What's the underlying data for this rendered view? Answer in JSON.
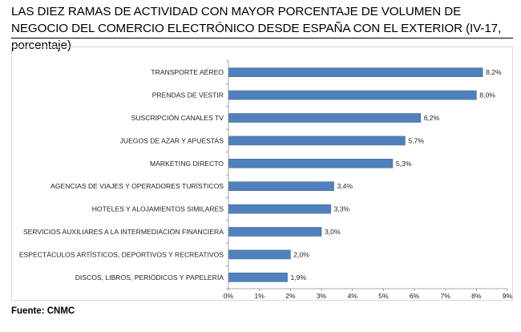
{
  "title": "LAS DIEZ RAMAS DE ACTIVIDAD CON MAYOR PORCENTAJE DE VOLUMEN DE NEGOCIO DEL COMERCIO ELECTRÓNICO DESDE ESPAÑA CON EL EXTERIOR (IV-17, porcentaje)",
  "source": "Fuente: CNMC",
  "colors": {
    "bar": "#4f81bd",
    "bar_edge": "#3b6a9e",
    "axis": "#8c8c8c"
  },
  "chart_data": {
    "type": "bar",
    "orientation": "horizontal",
    "title": "",
    "xlabel": "",
    "ylabel": "",
    "xlim": [
      0,
      9
    ],
    "x_ticks": [
      0,
      1,
      2,
      3,
      4,
      5,
      6,
      7,
      8,
      9
    ],
    "x_tick_labels": [
      "0%",
      "1%",
      "2%",
      "3%",
      "4%",
      "5%",
      "6%",
      "7%",
      "8%",
      "9%"
    ],
    "grid": false,
    "categories": [
      "TRANSPORTE AÉREO",
      "PRENDAS DE VESTIR",
      "SUSCRIPCIÓN CANALES TV",
      "JUEGOS DE AZAR Y APUESTAS",
      "MARKETING DIRECTO",
      "AGENCIAS DE VIAJES Y OPERADORES TURÍSTICOS",
      "HOTELES  Y ALOJAMIENTOS SIMILARES",
      "SERVICIOS AUXILIARES A LA INTERMEDIACIÓN FINANCIERA",
      "ESPECTÁCULOS ARTÍSTICOS, DEPORTIVOS Y RECREATIVOS",
      "DISCOS, LIBROS, PERIÓDICOS Y PAPELERÍA"
    ],
    "values": [
      8.2,
      8.0,
      6.2,
      5.7,
      5.3,
      3.4,
      3.3,
      3.0,
      2.0,
      1.9
    ],
    "value_labels": [
      "8,2%",
      "8,0%",
      "6,2%",
      "5,7%",
      "5,3%",
      "3,4%",
      "3,3%",
      "3,0%",
      "2,0%",
      "1,9%"
    ]
  }
}
